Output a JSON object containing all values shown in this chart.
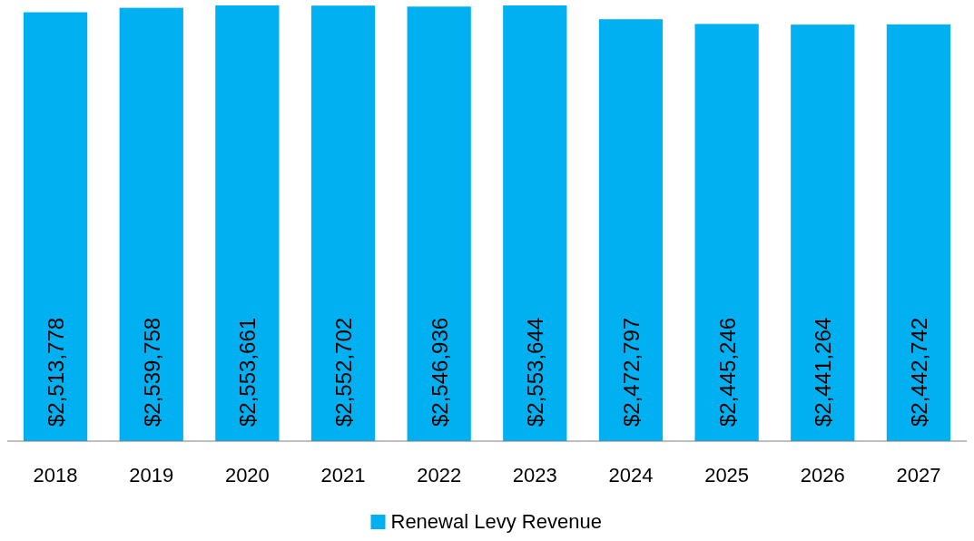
{
  "chart_data": {
    "type": "bar",
    "categories": [
      "2018",
      "2019",
      "2020",
      "2021",
      "2022",
      "2023",
      "2024",
      "2025",
      "2026",
      "2027"
    ],
    "series": [
      {
        "name": "Renewal Levy Revenue",
        "color": "#00b0f0",
        "values": [
          2513778,
          2539758,
          2553661,
          2552702,
          2546936,
          2553644,
          2472797,
          2445246,
          2441264,
          2442742
        ],
        "value_labels": [
          "$2,513,778",
          "$2,539,758",
          "$2,553,661",
          "$2,552,702",
          "$2,546,936",
          "$2,553,644",
          "$2,472,797",
          "$2,445,246",
          "$2,441,264",
          "$2,442,742"
        ]
      }
    ],
    "legend": "bottom"
  }
}
